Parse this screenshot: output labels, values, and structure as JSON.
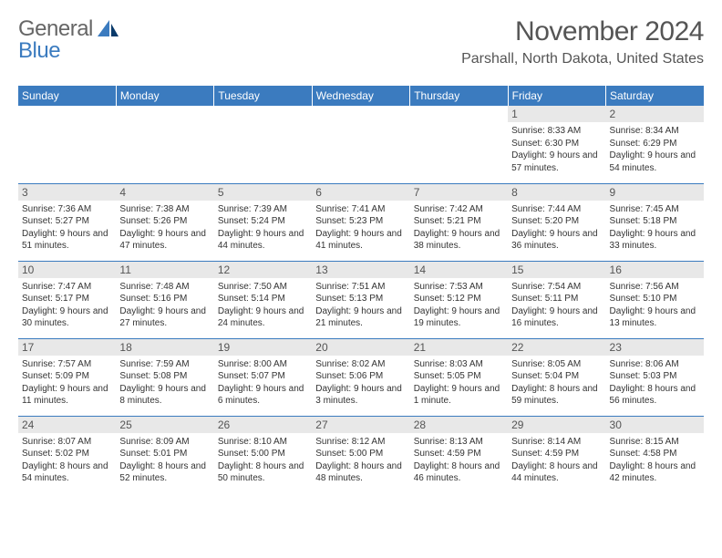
{
  "logo": {
    "text1": "General",
    "text2": "Blue"
  },
  "title": "November 2024",
  "location": "Parshall, North Dakota, United States",
  "colors": {
    "header_bg": "#3b7bbf",
    "header_fg": "#ffffff",
    "daynum_bg": "#e8e8e8",
    "text": "#333333",
    "border": "#3b7bbf"
  },
  "day_headers": [
    "Sunday",
    "Monday",
    "Tuesday",
    "Wednesday",
    "Thursday",
    "Friday",
    "Saturday"
  ],
  "weeks": [
    [
      {
        "n": "",
        "lines": []
      },
      {
        "n": "",
        "lines": []
      },
      {
        "n": "",
        "lines": []
      },
      {
        "n": "",
        "lines": []
      },
      {
        "n": "",
        "lines": []
      },
      {
        "n": "1",
        "lines": [
          "Sunrise: 8:33 AM",
          "Sunset: 6:30 PM",
          "Daylight: 9 hours and 57 minutes."
        ]
      },
      {
        "n": "2",
        "lines": [
          "Sunrise: 8:34 AM",
          "Sunset: 6:29 PM",
          "Daylight: 9 hours and 54 minutes."
        ]
      }
    ],
    [
      {
        "n": "3",
        "lines": [
          "Sunrise: 7:36 AM",
          "Sunset: 5:27 PM",
          "Daylight: 9 hours and 51 minutes."
        ]
      },
      {
        "n": "4",
        "lines": [
          "Sunrise: 7:38 AM",
          "Sunset: 5:26 PM",
          "Daylight: 9 hours and 47 minutes."
        ]
      },
      {
        "n": "5",
        "lines": [
          "Sunrise: 7:39 AM",
          "Sunset: 5:24 PM",
          "Daylight: 9 hours and 44 minutes."
        ]
      },
      {
        "n": "6",
        "lines": [
          "Sunrise: 7:41 AM",
          "Sunset: 5:23 PM",
          "Daylight: 9 hours and 41 minutes."
        ]
      },
      {
        "n": "7",
        "lines": [
          "Sunrise: 7:42 AM",
          "Sunset: 5:21 PM",
          "Daylight: 9 hours and 38 minutes."
        ]
      },
      {
        "n": "8",
        "lines": [
          "Sunrise: 7:44 AM",
          "Sunset: 5:20 PM",
          "Daylight: 9 hours and 36 minutes."
        ]
      },
      {
        "n": "9",
        "lines": [
          "Sunrise: 7:45 AM",
          "Sunset: 5:18 PM",
          "Daylight: 9 hours and 33 minutes."
        ]
      }
    ],
    [
      {
        "n": "10",
        "lines": [
          "Sunrise: 7:47 AM",
          "Sunset: 5:17 PM",
          "Daylight: 9 hours and 30 minutes."
        ]
      },
      {
        "n": "11",
        "lines": [
          "Sunrise: 7:48 AM",
          "Sunset: 5:16 PM",
          "Daylight: 9 hours and 27 minutes."
        ]
      },
      {
        "n": "12",
        "lines": [
          "Sunrise: 7:50 AM",
          "Sunset: 5:14 PM",
          "Daylight: 9 hours and 24 minutes."
        ]
      },
      {
        "n": "13",
        "lines": [
          "Sunrise: 7:51 AM",
          "Sunset: 5:13 PM",
          "Daylight: 9 hours and 21 minutes."
        ]
      },
      {
        "n": "14",
        "lines": [
          "Sunrise: 7:53 AM",
          "Sunset: 5:12 PM",
          "Daylight: 9 hours and 19 minutes."
        ]
      },
      {
        "n": "15",
        "lines": [
          "Sunrise: 7:54 AM",
          "Sunset: 5:11 PM",
          "Daylight: 9 hours and 16 minutes."
        ]
      },
      {
        "n": "16",
        "lines": [
          "Sunrise: 7:56 AM",
          "Sunset: 5:10 PM",
          "Daylight: 9 hours and 13 minutes."
        ]
      }
    ],
    [
      {
        "n": "17",
        "lines": [
          "Sunrise: 7:57 AM",
          "Sunset: 5:09 PM",
          "Daylight: 9 hours and 11 minutes."
        ]
      },
      {
        "n": "18",
        "lines": [
          "Sunrise: 7:59 AM",
          "Sunset: 5:08 PM",
          "Daylight: 9 hours and 8 minutes."
        ]
      },
      {
        "n": "19",
        "lines": [
          "Sunrise: 8:00 AM",
          "Sunset: 5:07 PM",
          "Daylight: 9 hours and 6 minutes."
        ]
      },
      {
        "n": "20",
        "lines": [
          "Sunrise: 8:02 AM",
          "Sunset: 5:06 PM",
          "Daylight: 9 hours and 3 minutes."
        ]
      },
      {
        "n": "21",
        "lines": [
          "Sunrise: 8:03 AM",
          "Sunset: 5:05 PM",
          "Daylight: 9 hours and 1 minute."
        ]
      },
      {
        "n": "22",
        "lines": [
          "Sunrise: 8:05 AM",
          "Sunset: 5:04 PM",
          "Daylight: 8 hours and 59 minutes."
        ]
      },
      {
        "n": "23",
        "lines": [
          "Sunrise: 8:06 AM",
          "Sunset: 5:03 PM",
          "Daylight: 8 hours and 56 minutes."
        ]
      }
    ],
    [
      {
        "n": "24",
        "lines": [
          "Sunrise: 8:07 AM",
          "Sunset: 5:02 PM",
          "Daylight: 8 hours and 54 minutes."
        ]
      },
      {
        "n": "25",
        "lines": [
          "Sunrise: 8:09 AM",
          "Sunset: 5:01 PM",
          "Daylight: 8 hours and 52 minutes."
        ]
      },
      {
        "n": "26",
        "lines": [
          "Sunrise: 8:10 AM",
          "Sunset: 5:00 PM",
          "Daylight: 8 hours and 50 minutes."
        ]
      },
      {
        "n": "27",
        "lines": [
          "Sunrise: 8:12 AM",
          "Sunset: 5:00 PM",
          "Daylight: 8 hours and 48 minutes."
        ]
      },
      {
        "n": "28",
        "lines": [
          "Sunrise: 8:13 AM",
          "Sunset: 4:59 PM",
          "Daylight: 8 hours and 46 minutes."
        ]
      },
      {
        "n": "29",
        "lines": [
          "Sunrise: 8:14 AM",
          "Sunset: 4:59 PM",
          "Daylight: 8 hours and 44 minutes."
        ]
      },
      {
        "n": "30",
        "lines": [
          "Sunrise: 8:15 AM",
          "Sunset: 4:58 PM",
          "Daylight: 8 hours and 42 minutes."
        ]
      }
    ]
  ]
}
